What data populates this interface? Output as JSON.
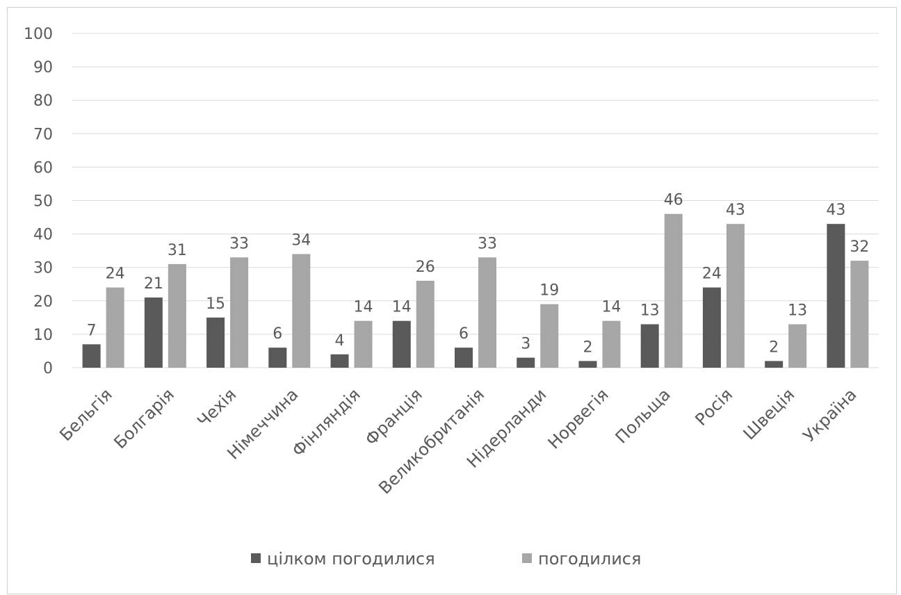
{
  "chart_data": {
    "type": "bar",
    "title": "",
    "xlabel": "",
    "ylabel": "",
    "ylim": [
      0,
      100
    ],
    "yticks": [
      0,
      10,
      20,
      30,
      40,
      50,
      60,
      70,
      80,
      90,
      100
    ],
    "grid": true,
    "legend_position": "bottom",
    "categories": [
      "Бельгія",
      "Болгарія",
      "Чехія",
      "Німеччина",
      "Фінляндія",
      "Франція",
      "Великобританія",
      "Нідерланди",
      "Норвегія",
      "Польща",
      "Росія",
      "Швеція",
      "Україна"
    ],
    "series": [
      {
        "name": "цілком погодилися",
        "color": "#595959",
        "values": [
          7,
          21,
          15,
          6,
          4,
          14,
          6,
          3,
          2,
          13,
          24,
          2,
          43
        ]
      },
      {
        "name": "погодилися",
        "color": "#a6a6a6",
        "values": [
          24,
          31,
          33,
          34,
          14,
          26,
          33,
          19,
          14,
          46,
          43,
          13,
          32
        ]
      }
    ]
  }
}
